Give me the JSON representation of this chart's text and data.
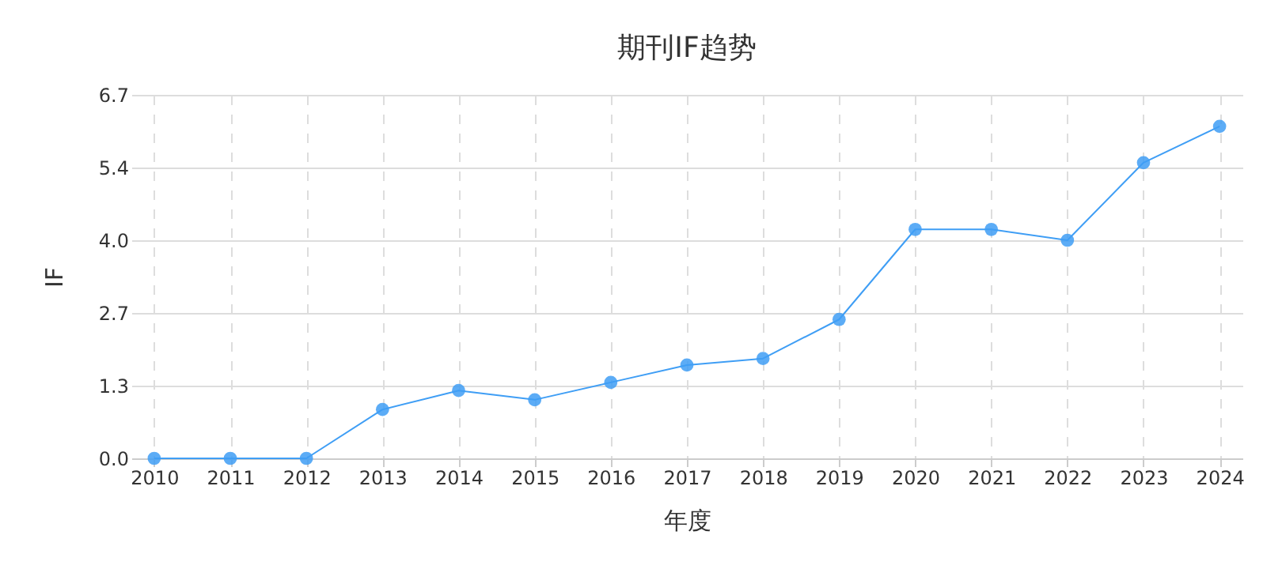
{
  "chart_data": {
    "type": "line",
    "title": "期刊IF趋势",
    "xlabel": "年度",
    "ylabel": "IF",
    "categories": [
      "2010",
      "2011",
      "2012",
      "2013",
      "2014",
      "2015",
      "2016",
      "2017",
      "2018",
      "2019",
      "2020",
      "2021",
      "2022",
      "2023",
      "2024"
    ],
    "series": [
      {
        "color": "#3f9ef5",
        "values": [
          0,
          0,
          0,
          0.9,
          1.25,
          1.08,
          1.4,
          1.72,
          1.84,
          2.56,
          4.22,
          4.22,
          4.02,
          5.45,
          6.12
        ]
      }
    ],
    "ylim": [
      0,
      6.7
    ],
    "yticks": [
      {
        "value": 0,
        "label": "0.0"
      },
      {
        "value": 1.34,
        "label": "1.3"
      },
      {
        "value": 2.68,
        "label": "2.7"
      },
      {
        "value": 4.02,
        "label": "4.0"
      },
      {
        "value": 5.36,
        "label": "5.4"
      },
      {
        "value": 6.7,
        "label": "6.7"
      }
    ],
    "grid": true,
    "marker": "circle",
    "line_style": "solid",
    "legend": false
  }
}
